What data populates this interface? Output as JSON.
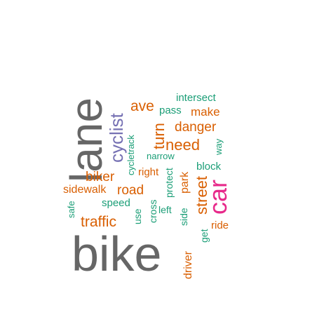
{
  "colors": {
    "gray": "#666666",
    "orange": "#d95f02",
    "teal": "#1b9e77",
    "purple": "#7570b3",
    "pink": "#e7298a"
  },
  "words": [
    {
      "id": "bike",
      "text": "bike",
      "color": "gray",
      "rotated": false
    },
    {
      "id": "lane",
      "text": "lane",
      "color": "gray",
      "rotated": true
    },
    {
      "id": "car",
      "text": "car",
      "color": "pink",
      "rotated": true
    },
    {
      "id": "cyclist",
      "text": "cyclist",
      "color": "purple",
      "rotated": true
    },
    {
      "id": "ave",
      "text": "ave",
      "color": "orange",
      "rotated": false
    },
    {
      "id": "intersect",
      "text": "intersect",
      "color": "teal",
      "rotated": false
    },
    {
      "id": "pass",
      "text": "pass",
      "color": "teal",
      "rotated": false
    },
    {
      "id": "make",
      "text": "make",
      "color": "orange",
      "rotated": false
    },
    {
      "id": "turn",
      "text": "turn",
      "color": "orange",
      "rotated": true
    },
    {
      "id": "danger",
      "text": "danger",
      "color": "orange",
      "rotated": false
    },
    {
      "id": "cycletrack",
      "text": "cycletrack",
      "color": "teal",
      "rotated": true
    },
    {
      "id": "need",
      "text": "need",
      "color": "orange",
      "rotated": false
    },
    {
      "id": "way",
      "text": "way",
      "color": "teal",
      "rotated": true
    },
    {
      "id": "narrow",
      "text": "narrow",
      "color": "teal",
      "rotated": false
    },
    {
      "id": "block",
      "text": "block",
      "color": "teal",
      "rotated": false
    },
    {
      "id": "biker",
      "text": "biker",
      "color": "orange",
      "rotated": false
    },
    {
      "id": "right",
      "text": "right",
      "color": "orange",
      "rotated": false
    },
    {
      "id": "protect",
      "text": "protect",
      "color": "teal",
      "rotated": true
    },
    {
      "id": "park",
      "text": "park",
      "color": "orange",
      "rotated": true
    },
    {
      "id": "street",
      "text": "street",
      "color": "orange",
      "rotated": true
    },
    {
      "id": "sidewalk",
      "text": "sidewalk",
      "color": "orange",
      "rotated": false
    },
    {
      "id": "road",
      "text": "road",
      "color": "orange",
      "rotated": false
    },
    {
      "id": "speed",
      "text": "speed",
      "color": "teal",
      "rotated": false
    },
    {
      "id": "safe",
      "text": "safe",
      "color": "teal",
      "rotated": true
    },
    {
      "id": "cross",
      "text": "cross",
      "color": "teal",
      "rotated": true
    },
    {
      "id": "left",
      "text": "left",
      "color": "teal",
      "rotated": false
    },
    {
      "id": "traffic",
      "text": "traffic",
      "color": "orange",
      "rotated": false
    },
    {
      "id": "use",
      "text": "use",
      "color": "teal",
      "rotated": true
    },
    {
      "id": "side",
      "text": "side",
      "color": "teal",
      "rotated": true
    },
    {
      "id": "ride",
      "text": "ride",
      "color": "orange",
      "rotated": false
    },
    {
      "id": "get",
      "text": "get",
      "color": "teal",
      "rotated": true
    },
    {
      "id": "driver",
      "text": "driver",
      "color": "orange",
      "rotated": true
    }
  ]
}
